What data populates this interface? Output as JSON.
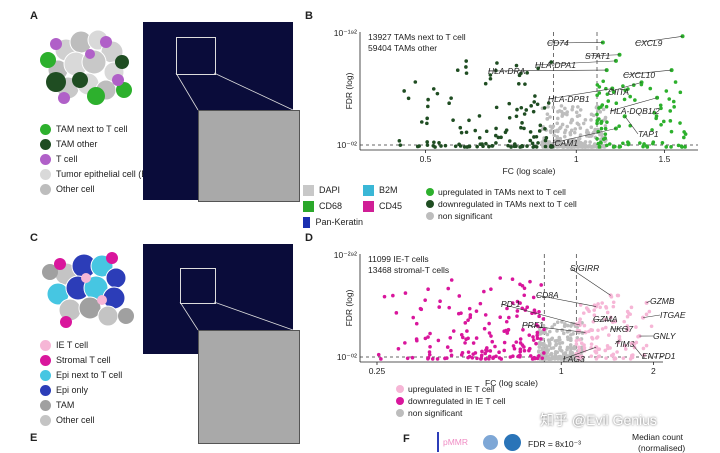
{
  "panels": {
    "a": "A",
    "b": "B",
    "c": "C",
    "d": "D",
    "e": "E",
    "f": "F"
  },
  "legend_a": [
    {
      "label": "TAM next to T cell",
      "color": "#2db02d"
    },
    {
      "label": "TAM other",
      "color": "#1f4d22"
    },
    {
      "label": "T cell",
      "color": "#b060c8"
    },
    {
      "label": "Tumor epithelial cell (Epi)",
      "color": "#d9d9d9"
    },
    {
      "label": "Other cell",
      "color": "#bdbdbd"
    }
  ],
  "stain_legend_a": [
    {
      "label": "DAPI",
      "color": "#c8c8c8"
    },
    {
      "label": "B2M",
      "color": "#3ab7d6"
    },
    {
      "label": "CD68",
      "color": "#2aa82a"
    },
    {
      "label": "CD45",
      "color": "#d01e96"
    },
    {
      "label": "Pan-Keratin",
      "color": "#1a2fb0"
    }
  ],
  "legend_c": [
    {
      "label": "IE T cell",
      "color": "#f6b6d6"
    },
    {
      "label": "Stromal T cell",
      "color": "#d9169c"
    },
    {
      "label": "Epi next to T cell",
      "color": "#46c6e2"
    },
    {
      "label": "Epi only",
      "color": "#2c3db8"
    },
    {
      "label": "TAM",
      "color": "#a0a0a0"
    },
    {
      "label": "Other cell",
      "color": "#c4c4c4"
    }
  ],
  "chart_data": [
    {
      "type": "scatter",
      "panel": "B",
      "xlabel": "FC (log scale)",
      "ylabel": "FDR (log)",
      "xticks": [
        "0.5",
        "1",
        "1.5"
      ],
      "y_top_label": "10⁻¹⁹²",
      "y_bottom_label": "10⁻⁰²",
      "annotation_lines": [
        "13927 TAMs next to T cell",
        "59404 TAMs other"
      ],
      "legend": [
        {
          "label": "upregulated in TAMs next to T cell",
          "color": "#2db02d"
        },
        {
          "label": "downregulated in TAMs next to T cell",
          "color": "#1f4d22"
        },
        {
          "label": "non significant",
          "color": "#bdbdbd"
        }
      ],
      "labeled_genes": [
        {
          "gene": "CD74",
          "fc": 1.13,
          "lognfdr": 175
        },
        {
          "gene": "STAT1",
          "fc": 1.22,
          "lognfdr": 155
        },
        {
          "gene": "CXCL9",
          "fc": 1.63,
          "lognfdr": 185
        },
        {
          "gene": "HLA-DPA1",
          "fc": 1.2,
          "lognfdr": 145
        },
        {
          "gene": "HLA-DRA",
          "fc": 1.15,
          "lognfdr": 130
        },
        {
          "gene": "CXCL10",
          "fc": 1.55,
          "lognfdr": 130
        },
        {
          "gene": "HLA-DPB1",
          "fc": 1.18,
          "lognfdr": 100
        },
        {
          "gene": "CIITA",
          "fc": 1.35,
          "lognfdr": 110
        },
        {
          "gene": "HLA-DQB1/2",
          "fc": 1.45,
          "lognfdr": 85
        },
        {
          "gene": "TAP1",
          "fc": 1.25,
          "lognfdr": 55
        },
        {
          "gene": "ICAM1",
          "fc": 1.2,
          "lognfdr": 35
        }
      ]
    },
    {
      "type": "scatter",
      "panel": "D",
      "xlabel": "FC (log scale)",
      "ylabel": "FDR (log)",
      "xticks": [
        "0.25",
        "1",
        "2"
      ],
      "y_top_label": "10⁻²⁹²",
      "y_bottom_label": "10⁻⁰²",
      "annotation_lines": [
        "11099 IE-T cells",
        "13468 stromal-T cells"
      ],
      "legend": [
        {
          "label": "upregulated in IE T cell",
          "color": "#f6b6d6"
        },
        {
          "label": "downregulated in IE T cell",
          "color": "#d9169c"
        },
        {
          "label": "non significant",
          "color": "#bdbdbd"
        }
      ],
      "labeled_genes": [
        {
          "gene": "SIGIRR",
          "fc": 1.45,
          "lognfdr": 180
        },
        {
          "gene": "CD8A",
          "fc": 1.3,
          "lognfdr": 150
        },
        {
          "gene": "GZMB",
          "fc": 1.9,
          "lognfdr": 160
        },
        {
          "gene": "PD-1",
          "fc": 1.15,
          "lognfdr": 100
        },
        {
          "gene": "ITGAE",
          "fc": 1.85,
          "lognfdr": 120
        },
        {
          "gene": "PRF1",
          "fc": 1.2,
          "lognfdr": 80
        },
        {
          "gene": "GZMA",
          "fc": 1.5,
          "lognfdr": 110
        },
        {
          "gene": "NKG7",
          "fc": 1.65,
          "lognfdr": 90
        },
        {
          "gene": "GNLY",
          "fc": 1.8,
          "lognfdr": 70
        },
        {
          "gene": "TIM3",
          "fc": 1.55,
          "lognfdr": 60
        },
        {
          "gene": "LAG3",
          "fc": 1.3,
          "lognfdr": 40
        },
        {
          "gene": "ENTPD1",
          "fc": 1.7,
          "lognfdr": 50
        }
      ]
    }
  ],
  "panel_f": {
    "pmmr": "pMMR",
    "fdr": "FDR = 8x10⁻³",
    "median_line1": "Median count",
    "median_line2": "(normalised)"
  },
  "watermark": "知乎 @Evil Genius"
}
